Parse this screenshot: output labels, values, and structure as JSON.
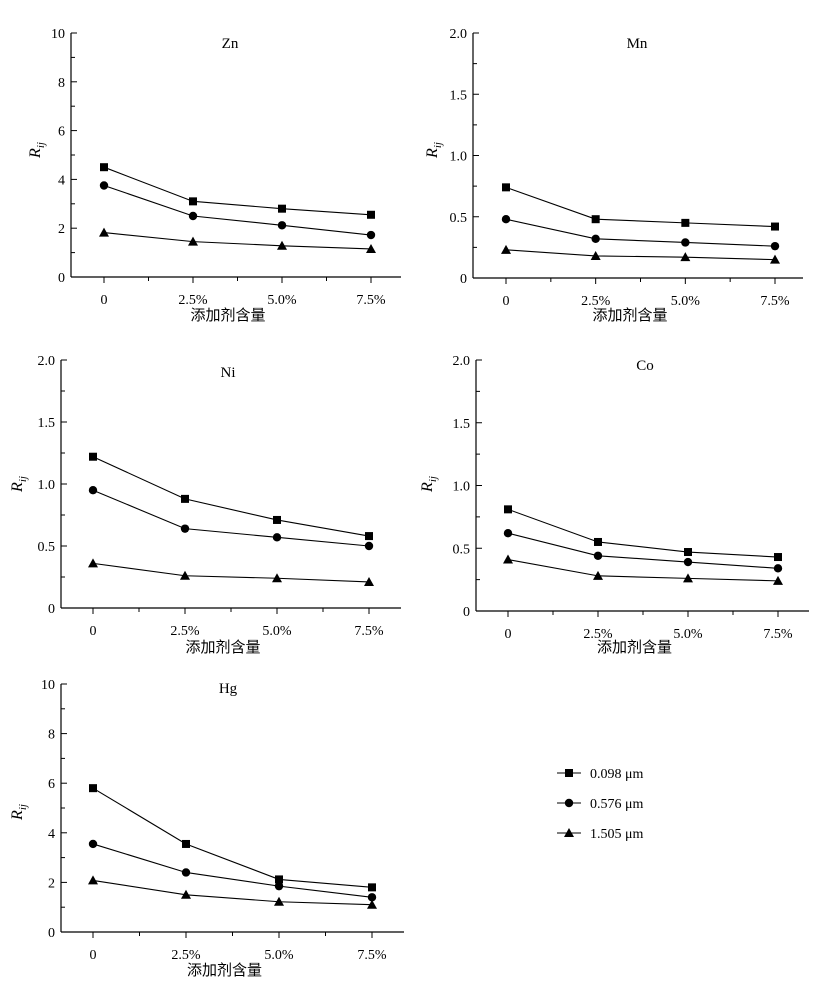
{
  "x_axis_label": "添加剂含量",
  "y_axis_label": {
    "main": "R",
    "sub": "ij"
  },
  "x_ticks": [
    "0",
    "2.5%",
    "5.0%",
    "7.5%"
  ],
  "legend": [
    {
      "label": "0.098 μm",
      "marker": "square"
    },
    {
      "label": "0.576 μm",
      "marker": "circle"
    },
    {
      "label": "1.505 μm",
      "marker": "triangle"
    }
  ],
  "chart_data": [
    {
      "type": "line",
      "title": "Zn",
      "xlabel": "添加剂含量",
      "ylabel": "Rij",
      "categories": [
        "0",
        "2.5%",
        "5.0%",
        "7.5%"
      ],
      "ylim": [
        0,
        10
      ],
      "yticks": [
        "0",
        "2",
        "4",
        "6",
        "8",
        "10"
      ],
      "series": [
        {
          "name": "0.098 μm",
          "values": [
            4.5,
            3.1,
            2.8,
            2.55
          ]
        },
        {
          "name": "0.576 μm",
          "values": [
            3.75,
            2.5,
            2.12,
            1.72
          ]
        },
        {
          "name": "1.505 μm",
          "values": [
            1.82,
            1.45,
            1.28,
            1.15
          ]
        }
      ]
    },
    {
      "type": "line",
      "title": "Mn",
      "xlabel": "添加剂含量",
      "ylabel": "Rij",
      "categories": [
        "0",
        "2.5%",
        "5.0%",
        "7.5%"
      ],
      "ylim": [
        0,
        2.0
      ],
      "yticks": [
        "0",
        "0.5",
        "1.0",
        "1.5",
        "2.0"
      ],
      "series": [
        {
          "name": "0.098 μm",
          "values": [
            0.74,
            0.48,
            0.45,
            0.42
          ]
        },
        {
          "name": "0.576 μm",
          "values": [
            0.48,
            0.32,
            0.29,
            0.26
          ]
        },
        {
          "name": "1.505 μm",
          "values": [
            0.23,
            0.18,
            0.17,
            0.15
          ]
        }
      ]
    },
    {
      "type": "line",
      "title": "Ni",
      "xlabel": "添加剂含量",
      "ylabel": "Rij",
      "categories": [
        "0",
        "2.5%",
        "5.0%",
        "7.5%"
      ],
      "ylim": [
        0,
        2.0
      ],
      "yticks": [
        "0",
        "0.5",
        "1.0",
        "1.5",
        "2.0"
      ],
      "series": [
        {
          "name": "0.098 μm",
          "values": [
            1.22,
            0.88,
            0.71,
            0.58
          ]
        },
        {
          "name": "0.576 μm",
          "values": [
            0.95,
            0.64,
            0.57,
            0.5
          ]
        },
        {
          "name": "1.505 μm",
          "values": [
            0.36,
            0.26,
            0.24,
            0.21
          ]
        }
      ]
    },
    {
      "type": "line",
      "title": "Co",
      "xlabel": "添加剂含量",
      "ylabel": "Rij",
      "categories": [
        "0",
        "2.5%",
        "5.0%",
        "7.5%"
      ],
      "ylim": [
        0,
        2.0
      ],
      "yticks": [
        "0",
        "0.5",
        "1.0",
        "1.5",
        "2.0"
      ],
      "series": [
        {
          "name": "0.098 μm",
          "values": [
            0.81,
            0.55,
            0.47,
            0.43
          ]
        },
        {
          "name": "0.576 μm",
          "values": [
            0.62,
            0.44,
            0.39,
            0.34
          ]
        },
        {
          "name": "1.505 μm",
          "values": [
            0.41,
            0.28,
            0.26,
            0.24
          ]
        }
      ]
    },
    {
      "type": "line",
      "title": "Hg",
      "xlabel": "添加剂含量",
      "ylabel": "Rij",
      "categories": [
        "0",
        "2.5%",
        "5.0%",
        "7.5%"
      ],
      "ylim": [
        0,
        10
      ],
      "yticks": [
        "0",
        "2",
        "4",
        "6",
        "8",
        "10"
      ],
      "series": [
        {
          "name": "0.098 μm",
          "values": [
            5.8,
            3.55,
            2.12,
            1.8
          ]
        },
        {
          "name": "0.576 μm",
          "values": [
            3.55,
            2.4,
            1.85,
            1.4
          ]
        },
        {
          "name": "1.505 μm",
          "values": [
            2.08,
            1.5,
            1.22,
            1.1
          ]
        }
      ]
    }
  ]
}
